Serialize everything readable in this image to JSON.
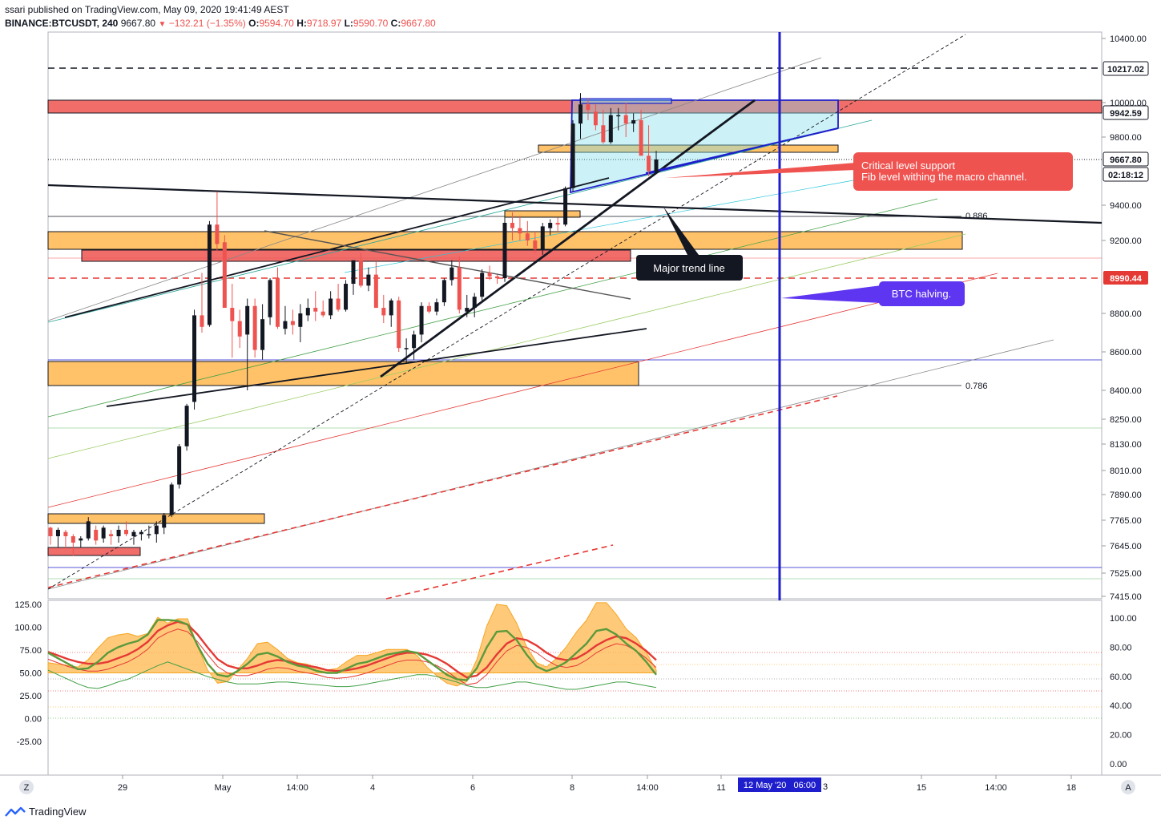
{
  "header": {
    "line1": "ssari published on TradingView.com, May 09, 2020 19:41:49 AEST",
    "symbol": "BINANCE:BTCUSDT, 240",
    "last": "9667.80",
    "change": "−132.21 (−1.35%)",
    "o_label": "O:",
    "o_value": "9594.70",
    "h_label": "H:",
    "h_value": "9718.97",
    "l_label": "L:",
    "l_value": "9590.70",
    "c_label": "C:",
    "c_value": "9667.80"
  },
  "footer": {
    "brand": "TradingView"
  },
  "colors": {
    "up": "#131722",
    "down": "#ef5350",
    "accent_blue": "#1e1ecc",
    "zone_orange": "#ffb74d",
    "zone_red": "#ef5350"
  },
  "price_axis": {
    "ticks": [
      "10400.00",
      "10000.00",
      "9800.00",
      "9400.00",
      "9200.00",
      "8800.00",
      "8600.00",
      "8400.00",
      "8250.00",
      "8130.00",
      "8010.00",
      "7890.00",
      "7765.00",
      "7645.00",
      "7525.00",
      "7415.00"
    ],
    "badges": {
      "level_top": "10217.02",
      "level_zone": "9942.59",
      "last_price": "9667.80",
      "countdown": "02:18:12",
      "halving_level": "8990.44"
    }
  },
  "osc_axis": {
    "left_ticks": [
      "125.00",
      "100.00",
      "75.00",
      "50.00",
      "25.00",
      "0.00",
      "-25.00"
    ],
    "right_ticks": [
      "100.00",
      "80.00",
      "60.00",
      "40.00",
      "20.00",
      "0.00"
    ]
  },
  "time_axis": {
    "labels": [
      "29",
      "May",
      "14:00",
      "4",
      "6",
      "8",
      "14:00",
      "11",
      "15",
      "14:00",
      "18"
    ],
    "cursor_label": "12 May '20   06:00",
    "partial": "3",
    "z_button": "Z",
    "a_button": "A"
  },
  "fib_labels": {
    "fib_886": "0.886",
    "fib_786": "0.786"
  },
  "annotations": {
    "critical_line1": "Critical level support",
    "critical_line2": "Fib level withing the macro channel.",
    "major_trend": "Major trend line",
    "halving": "BTC halving."
  },
  "chart_data": [
    {
      "type": "candlestick",
      "title": "",
      "symbol": "BINANCE:BTCUSDT",
      "timeframe": "240",
      "ylim": [
        7415,
        10400
      ],
      "last_price": 9667.8,
      "ohlc": [
        [
          7730,
          7735,
          7650,
          7690
        ],
        [
          7690,
          7730,
          7640,
          7720
        ],
        [
          7710,
          7720,
          7630,
          7690
        ],
        [
          7690,
          7700,
          7600,
          7660
        ],
        [
          7670,
          7690,
          7640,
          7680
        ],
        [
          7680,
          7780,
          7670,
          7760
        ],
        [
          7720,
          7740,
          7650,
          7670
        ],
        [
          7680,
          7740,
          7660,
          7730
        ],
        [
          7700,
          7720,
          7650,
          7690
        ],
        [
          7690,
          7740,
          7660,
          7720
        ],
        [
          7720,
          7760,
          7690,
          7700
        ],
        [
          7690,
          7720,
          7650,
          7710
        ],
        [
          7700,
          7720,
          7670,
          7710
        ],
        [
          7700,
          7740,
          7680,
          7700
        ],
        [
          7700,
          7760,
          7660,
          7740
        ],
        [
          7730,
          7800,
          7700,
          7790
        ],
        [
          7790,
          7950,
          7780,
          7940
        ],
        [
          7940,
          8130,
          7920,
          8120
        ],
        [
          8120,
          8330,
          8100,
          8320
        ],
        [
          8340,
          8820,
          8300,
          8790
        ],
        [
          8790,
          9020,
          8700,
          8730
        ],
        [
          8740,
          9310,
          8730,
          9290
        ],
        [
          9290,
          9480,
          9140,
          9180
        ],
        [
          9190,
          9230,
          8850,
          8830
        ],
        [
          8830,
          8960,
          8570,
          8760
        ],
        [
          8760,
          8820,
          8620,
          8680
        ],
        [
          8690,
          8880,
          8400,
          8840
        ],
        [
          8840,
          8880,
          8570,
          8610
        ],
        [
          8610,
          8850,
          8560,
          8770
        ],
        [
          8780,
          8990,
          8740,
          8980
        ],
        [
          8990,
          9050,
          8720,
          8730
        ],
        [
          8720,
          8840,
          8690,
          8760
        ],
        [
          8760,
          8820,
          8690,
          8740
        ],
        [
          8730,
          8850,
          8650,
          8800
        ],
        [
          8790,
          8880,
          8760,
          8830
        ],
        [
          8830,
          8920,
          8760,
          8810
        ],
        [
          8810,
          8870,
          8780,
          8790
        ],
        [
          8790,
          8920,
          8770,
          8880
        ],
        [
          8880,
          8960,
          8810,
          8820
        ],
        [
          8820,
          8980,
          8810,
          8960
        ],
        [
          8960,
          9080,
          8900,
          9090
        ],
        [
          9090,
          9130,
          8940,
          8950
        ],
        [
          8950,
          9050,
          8920,
          9010
        ],
        [
          9010,
          9080,
          8840,
          8830
        ],
        [
          8830,
          8900,
          8750,
          8790
        ],
        [
          8790,
          8880,
          8730,
          8870
        ],
        [
          8870,
          8890,
          8600,
          8620
        ],
        [
          8620,
          8670,
          8540,
          8620
        ],
        [
          8620,
          8710,
          8560,
          8690
        ],
        [
          8690,
          8860,
          8650,
          8840
        ],
        [
          8840,
          8860,
          8800,
          8810
        ],
        [
          8810,
          8880,
          8790,
          8860
        ],
        [
          8860,
          8990,
          8840,
          8980
        ],
        [
          8980,
          9090,
          8950,
          9050
        ],
        [
          9050,
          9110,
          8800,
          8820
        ],
        [
          8810,
          8900,
          8780,
          8830
        ],
        [
          8830,
          8910,
          8780,
          8890
        ],
        [
          8890,
          9040,
          8870,
          9020
        ],
        [
          9020,
          9060,
          8980,
          9000
        ],
        [
          9000,
          9010,
          8960,
          8990
        ],
        [
          8990,
          9330,
          8970,
          9300
        ],
        [
          9300,
          9360,
          9200,
          9270
        ],
        [
          9270,
          9340,
          9200,
          9240
        ],
        [
          9240,
          9310,
          9170,
          9200
        ],
        [
          9200,
          9250,
          9130,
          9150
        ],
        [
          9150,
          9300,
          9120,
          9280
        ],
        [
          9270,
          9320,
          9230,
          9300
        ],
        [
          9300,
          9330,
          9250,
          9290
        ],
        [
          9290,
          9510,
          9280,
          9500
        ],
        [
          9500,
          9900,
          9480,
          9880
        ],
        [
          9880,
          10060,
          9790,
          9990
        ],
        [
          9990,
          10030,
          9900,
          9960
        ],
        [
          9950,
          9990,
          9840,
          9870
        ],
        [
          9870,
          9960,
          9760,
          9770
        ],
        [
          9770,
          9970,
          9760,
          9930
        ],
        [
          9930,
          9970,
          9840,
          9930
        ],
        [
          9930,
          10000,
          9800,
          9880
        ],
        [
          9880,
          9940,
          9830,
          9900
        ],
        [
          9900,
          9960,
          9700,
          9690
        ],
        [
          9690,
          9870,
          9570,
          9600
        ],
        [
          9594.7,
          9718.97,
          9590.7,
          9667.8
        ]
      ]
    },
    {
      "type": "line",
      "title": "",
      "ylim_left": [
        -40,
        130
      ],
      "ylim_right": [
        0,
        105
      ],
      "series": [
        {
          "values": [
            72,
            66,
            60,
            54,
            55,
            62,
            72,
            78,
            82,
            85,
            92,
            108,
            108,
            107,
            103,
            80,
            60,
            48,
            46,
            52,
            60,
            70,
            72,
            68,
            62,
            58,
            56,
            52,
            50,
            50,
            55,
            60,
            62,
            66,
            70,
            72,
            74,
            72,
            64,
            56,
            48,
            43,
            42,
            55,
            78,
            95,
            96,
            86,
            70,
            57,
            52,
            56,
            62,
            72,
            82,
            96,
            98,
            92,
            82,
            74,
            62,
            48
          ]
        },
        {
          "values": [
            73,
            69,
            65,
            62,
            60,
            60,
            62,
            66,
            70,
            76,
            84,
            96,
            102,
            106,
            103,
            92,
            78,
            65,
            58,
            55,
            55,
            58,
            62,
            64,
            63,
            60,
            58,
            56,
            53,
            52,
            53,
            55,
            58,
            62,
            66,
            70,
            72,
            72,
            70,
            66,
            60,
            52,
            45,
            47,
            56,
            70,
            82,
            88,
            86,
            80,
            72,
            66,
            64,
            66,
            72,
            80,
            86,
            90,
            88,
            82,
            74,
            64
          ]
        },
        {
          "values": [
            65,
            60,
            55,
            50,
            46,
            45,
            48,
            52,
            55,
            60,
            65,
            70,
            74,
            70,
            66,
            62,
            58,
            55,
            52,
            50,
            50,
            50,
            51,
            52,
            52,
            51,
            50,
            49,
            48,
            47,
            47,
            48,
            50,
            52,
            54,
            56,
            58,
            60,
            60,
            58,
            55,
            52,
            48,
            46,
            46,
            48,
            50,
            52,
            52,
            50,
            48,
            46,
            44,
            44,
            46,
            48,
            50,
            52,
            52,
            50,
            48,
            46
          ]
        }
      ]
    }
  ]
}
